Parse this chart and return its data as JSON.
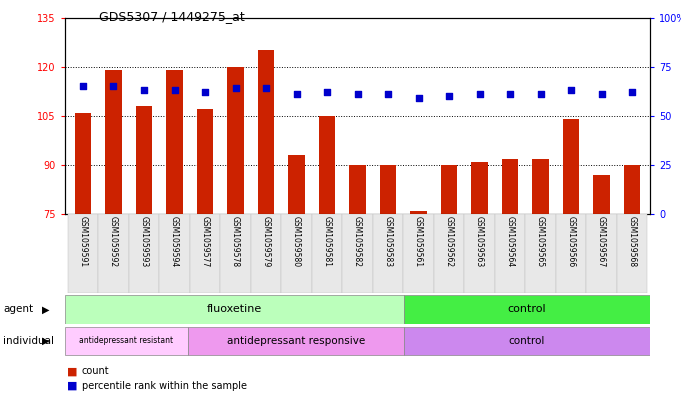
{
  "title": "GDS5307 / 1449275_at",
  "categories": [
    "GSM1059591",
    "GSM1059592",
    "GSM1059593",
    "GSM1059594",
    "GSM1059577",
    "GSM1059578",
    "GSM1059579",
    "GSM1059580",
    "GSM1059581",
    "GSM1059582",
    "GSM1059583",
    "GSM1059561",
    "GSM1059562",
    "GSM1059563",
    "GSM1059564",
    "GSM1059565",
    "GSM1059566",
    "GSM1059567",
    "GSM1059568"
  ],
  "bar_values": [
    106,
    119,
    108,
    119,
    107,
    120,
    125,
    93,
    105,
    90,
    90,
    76,
    90,
    91,
    92,
    92,
    104,
    87,
    90
  ],
  "percentile_values": [
    65,
    65,
    63,
    63,
    62,
    64,
    64,
    61,
    62,
    61,
    61,
    59,
    60,
    61,
    61,
    61,
    63,
    61,
    62
  ],
  "bar_color": "#cc2200",
  "percentile_color": "#0000cc",
  "ylim_left": [
    75,
    135
  ],
  "ylim_right": [
    0,
    100
  ],
  "yticks_left": [
    75,
    90,
    105,
    120,
    135
  ],
  "yticks_right": [
    0,
    25,
    50,
    75,
    100
  ],
  "ytick_labels_right": [
    "0",
    "25",
    "50",
    "75",
    "100%"
  ],
  "gridlines_at": [
    90,
    105,
    120
  ],
  "agent_groups": [
    {
      "label": "fluoxetine",
      "start": 0,
      "end": 10,
      "color": "#bbffbb"
    },
    {
      "label": "control",
      "start": 11,
      "end": 18,
      "color": "#44ee44"
    }
  ],
  "individual_groups": [
    {
      "label": "antidepressant resistant",
      "start": 0,
      "end": 3,
      "color": "#ffccff"
    },
    {
      "label": "antidepressant responsive",
      "start": 4,
      "end": 10,
      "color": "#ee99ee"
    },
    {
      "label": "control",
      "start": 11,
      "end": 18,
      "color": "#cc88ee"
    }
  ],
  "legend_items": [
    {
      "color": "#cc2200",
      "label": "count"
    },
    {
      "color": "#0000cc",
      "label": "percentile rank within the sample"
    }
  ]
}
